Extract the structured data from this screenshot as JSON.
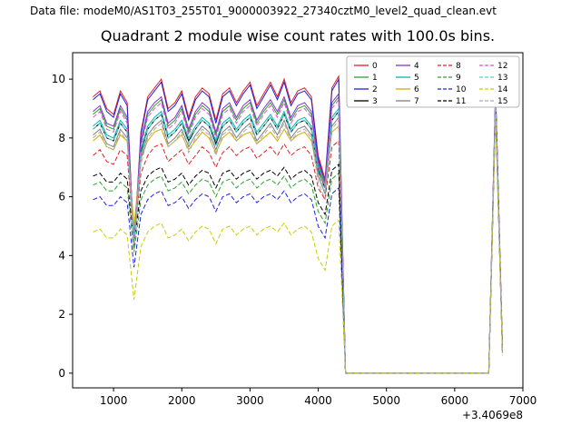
{
  "header": {
    "data_file": "Data file: modeM0/AS1T03_255T01_9000003922_27340cztM0_level2_quad_clean.evt"
  },
  "chart_data": {
    "type": "line",
    "title": "Quadrant 2 module wise count rates with 100.0s bins.",
    "xlabel": "",
    "ylabel": "",
    "x_offset_text": "+3.4069e8",
    "xlim": [
      400,
      7000
    ],
    "ylim": [
      -0.5,
      10.9
    ],
    "xticks": [
      1000,
      2000,
      3000,
      4000,
      5000,
      6000,
      7000
    ],
    "yticks": [
      0,
      2,
      4,
      6,
      8,
      10
    ],
    "grid": false,
    "legend_position": "upper right",
    "legend_columns": 4,
    "background_color": "#ffffff",
    "axis_color": "#000000",
    "legend_border_color": "#b5b5b5",
    "x": [
      700,
      800,
      900,
      1000,
      1100,
      1200,
      1300,
      1400,
      1500,
      1600,
      1700,
      1800,
      1900,
      2000,
      2100,
      2200,
      2300,
      2400,
      2500,
      2600,
      2700,
      2800,
      2900,
      3000,
      3100,
      3200,
      3300,
      3400,
      3500,
      3600,
      3700,
      3800,
      3900,
      4000,
      4100,
      4200,
      4300,
      4400,
      4500,
      4600,
      4700,
      4800,
      4900,
      5000,
      5100,
      5200,
      5300,
      5400,
      5500,
      5600,
      5700,
      5800,
      5900,
      6000,
      6100,
      6200,
      6300,
      6400,
      6500,
      6600,
      6700
    ],
    "series": [
      {
        "name": "0",
        "color": "#e02020",
        "dash": false,
        "values": [
          9.4,
          9.6,
          9.0,
          8.8,
          9.6,
          9.2,
          4.3,
          8.2,
          9.4,
          9.7,
          10.0,
          9.0,
          9.2,
          9.6,
          8.7,
          9.4,
          9.7,
          9.5,
          8.6,
          9.5,
          9.7,
          9.2,
          9.6,
          9.9,
          9.1,
          9.5,
          9.9,
          9.4,
          10.0,
          9.2,
          9.6,
          9.7,
          9.4,
          7.4,
          6.6,
          9.7,
          10.1,
          0,
          0,
          0,
          0,
          0,
          0,
          0,
          0,
          0,
          0,
          0,
          0,
          0,
          0,
          0,
          0,
          0,
          0,
          0,
          0,
          0,
          0,
          9.7,
          0.9
        ]
      },
      {
        "name": "1",
        "color": "#2ca02c",
        "dash": false,
        "values": [
          8.8,
          9.0,
          8.4,
          8.3,
          9.0,
          8.6,
          4.5,
          7.8,
          8.8,
          9.1,
          9.3,
          8.4,
          8.6,
          9.0,
          8.2,
          8.8,
          9.1,
          8.9,
          8.1,
          8.9,
          9.1,
          8.6,
          9.0,
          9.2,
          8.5,
          8.9,
          9.2,
          8.8,
          9.3,
          8.6,
          9.0,
          9.1,
          8.8,
          7.1,
          6.4,
          9.1,
          9.4,
          0,
          0,
          0,
          0,
          0,
          0,
          0,
          0,
          0,
          0,
          0,
          0,
          0,
          0,
          0,
          0,
          0,
          0,
          0,
          0,
          0,
          0,
          9.4,
          0.8
        ]
      },
      {
        "name": "2",
        "color": "#2020dd",
        "dash": false,
        "values": [
          9.3,
          9.5,
          8.9,
          8.7,
          9.5,
          9.1,
          4.2,
          8.1,
          9.3,
          9.6,
          9.9,
          8.9,
          9.1,
          9.5,
          8.6,
          9.3,
          9.6,
          9.4,
          8.5,
          9.4,
          9.6,
          9.1,
          9.5,
          9.8,
          9.0,
          9.4,
          9.8,
          9.3,
          9.9,
          9.1,
          9.5,
          9.6,
          9.3,
          7.3,
          6.5,
          9.6,
          10.0,
          0,
          0,
          0,
          0,
          0,
          0,
          0,
          0,
          0,
          0,
          0,
          0,
          0,
          0,
          0,
          0,
          0,
          0,
          0,
          0,
          0,
          0,
          9.6,
          0.8
        ]
      },
      {
        "name": "3",
        "color": "#000000",
        "dash": false,
        "values": [
          8.3,
          8.5,
          8.0,
          7.9,
          8.5,
          8.2,
          4.6,
          7.5,
          8.3,
          8.6,
          8.8,
          8.0,
          8.2,
          8.5,
          7.9,
          8.3,
          8.6,
          8.4,
          7.8,
          8.4,
          8.6,
          8.2,
          8.5,
          8.7,
          8.1,
          8.4,
          8.7,
          8.3,
          8.8,
          8.2,
          8.5,
          8.6,
          8.3,
          6.9,
          6.3,
          8.6,
          8.9,
          0,
          0,
          0,
          0,
          0,
          0,
          0,
          0,
          0,
          0,
          0,
          0,
          0,
          0,
          0,
          0,
          0,
          0,
          0,
          0,
          0,
          0,
          9.2,
          0.7
        ]
      },
      {
        "name": "4",
        "color": "#8833cc",
        "dash": false,
        "values": [
          8.9,
          9.1,
          8.5,
          8.4,
          9.1,
          8.7,
          4.6,
          7.9,
          8.9,
          9.2,
          9.4,
          8.5,
          8.7,
          9.1,
          8.3,
          8.9,
          9.2,
          9.0,
          8.2,
          9.0,
          9.2,
          8.7,
          9.1,
          9.3,
          8.6,
          9.0,
          9.3,
          8.9,
          9.4,
          8.7,
          9.1,
          9.2,
          8.9,
          7.2,
          6.5,
          9.2,
          9.5,
          0,
          0,
          0,
          0,
          0,
          0,
          0,
          0,
          0,
          0,
          0,
          0,
          0,
          0,
          0,
          0,
          0,
          0,
          0,
          0,
          0,
          0,
          9.5,
          0.8
        ]
      },
      {
        "name": "5",
        "color": "#00b7b7",
        "dash": false,
        "values": [
          8.4,
          8.6,
          8.1,
          8.0,
          8.6,
          8.3,
          4.7,
          7.6,
          8.4,
          8.7,
          8.9,
          8.1,
          8.3,
          8.6,
          8.0,
          8.4,
          8.7,
          8.5,
          7.9,
          8.5,
          8.7,
          8.3,
          8.6,
          8.8,
          8.2,
          8.5,
          8.8,
          8.4,
          8.9,
          8.3,
          8.6,
          8.7,
          8.4,
          7.0,
          6.4,
          8.7,
          9.0,
          0,
          0,
          0,
          0,
          0,
          0,
          0,
          0,
          0,
          0,
          0,
          0,
          0,
          0,
          0,
          0,
          0,
          0,
          0,
          0,
          0,
          0,
          9.3,
          0.8
        ]
      },
      {
        "name": "6",
        "color": "#d4aa00",
        "dash": false,
        "values": [
          7.9,
          8.1,
          7.7,
          7.6,
          8.1,
          7.9,
          5.0,
          7.3,
          7.9,
          8.2,
          8.3,
          7.7,
          7.9,
          8.1,
          7.6,
          7.9,
          8.2,
          8.0,
          7.5,
          8.0,
          8.2,
          7.9,
          8.1,
          8.2,
          7.8,
          8.0,
          8.2,
          7.9,
          8.3,
          7.9,
          8.1,
          8.2,
          7.9,
          6.8,
          6.4,
          8.2,
          8.4,
          0,
          0,
          0,
          0,
          0,
          0,
          0,
          0,
          0,
          0,
          0,
          0,
          0,
          0,
          0,
          0,
          0,
          0,
          0,
          0,
          0,
          0,
          9.1,
          0.7
        ]
      },
      {
        "name": "7",
        "color": "#808080",
        "dash": false,
        "values": [
          8.1,
          8.3,
          7.8,
          7.7,
          8.3,
          8.0,
          4.4,
          7.3,
          8.1,
          8.4,
          8.6,
          7.8,
          8.0,
          8.3,
          7.7,
          8.1,
          8.4,
          8.2,
          7.6,
          8.2,
          8.4,
          8.0,
          8.3,
          8.5,
          7.9,
          8.2,
          8.5,
          8.1,
          8.6,
          8.0,
          8.3,
          8.4,
          8.1,
          6.7,
          6.1,
          8.4,
          8.7,
          0,
          0,
          0,
          0,
          0,
          0,
          0,
          0,
          0,
          0,
          0,
          0,
          0,
          0,
          0,
          0,
          0,
          0,
          0,
          0,
          0,
          0,
          9.0,
          0.7
        ]
      },
      {
        "name": "8",
        "color": "#e02020",
        "dash": true,
        "values": [
          7.4,
          7.6,
          7.2,
          7.1,
          7.6,
          7.4,
          4.5,
          6.8,
          7.4,
          7.7,
          7.8,
          7.2,
          7.4,
          7.6,
          7.1,
          7.4,
          7.7,
          7.5,
          7.0,
          7.5,
          7.7,
          7.4,
          7.6,
          7.7,
          7.3,
          7.5,
          7.7,
          7.4,
          7.8,
          7.4,
          7.6,
          7.7,
          7.4,
          6.3,
          5.9,
          7.7,
          7.9,
          0,
          0,
          0,
          0,
          0,
          0,
          0,
          0,
          0,
          0,
          0,
          0,
          0,
          0,
          0,
          0,
          0,
          0,
          0,
          0,
          0,
          0,
          8.9,
          0.7
        ]
      },
      {
        "name": "9",
        "color": "#2ca02c",
        "dash": true,
        "values": [
          6.4,
          6.5,
          6.2,
          6.2,
          6.5,
          6.3,
          4.1,
          5.9,
          6.4,
          6.6,
          6.7,
          6.2,
          6.3,
          6.5,
          6.1,
          6.4,
          6.6,
          6.5,
          6.0,
          6.5,
          6.6,
          6.3,
          6.5,
          6.6,
          6.3,
          6.5,
          6.6,
          6.4,
          6.7,
          6.3,
          6.5,
          6.6,
          6.4,
          5.5,
          5.1,
          6.6,
          6.8,
          0,
          0,
          0,
          0,
          0,
          0,
          0,
          0,
          0,
          0,
          0,
          0,
          0,
          0,
          0,
          0,
          0,
          0,
          0,
          0,
          0,
          0,
          9.2,
          0.8
        ]
      },
      {
        "name": "10",
        "color": "#2020dd",
        "dash": true,
        "values": [
          5.9,
          6.0,
          5.7,
          5.7,
          6.0,
          5.8,
          3.6,
          5.4,
          5.9,
          6.1,
          6.2,
          5.7,
          5.8,
          6.0,
          5.6,
          5.9,
          6.1,
          6.0,
          5.5,
          6.0,
          6.1,
          5.8,
          6.0,
          6.1,
          5.8,
          6.0,
          6.1,
          5.9,
          6.2,
          5.8,
          6.0,
          6.1,
          5.9,
          5.0,
          4.6,
          6.1,
          6.3,
          0,
          0,
          0,
          0,
          0,
          0,
          0,
          0,
          0,
          0,
          0,
          0,
          0,
          0,
          0,
          0,
          0,
          0,
          0,
          0,
          0,
          0,
          9.0,
          0.7
        ]
      },
      {
        "name": "11",
        "color": "#000000",
        "dash": true,
        "values": [
          6.7,
          6.8,
          6.5,
          6.5,
          6.8,
          6.6,
          4.4,
          6.2,
          6.7,
          6.9,
          7.0,
          6.5,
          6.6,
          6.8,
          6.4,
          6.7,
          6.9,
          6.8,
          6.3,
          6.8,
          6.9,
          6.6,
          6.8,
          6.9,
          6.6,
          6.8,
          6.9,
          6.7,
          7.0,
          6.6,
          6.8,
          6.9,
          6.7,
          5.8,
          5.4,
          6.9,
          7.1,
          0,
          0,
          0,
          0,
          0,
          0,
          0,
          0,
          0,
          0,
          0,
          0,
          0,
          0,
          0,
          0,
          0,
          0,
          0,
          0,
          0,
          0,
          9.1,
          0.7
        ]
      },
      {
        "name": "12",
        "color": "#dd55dd",
        "dash": true,
        "values": [
          8.7,
          8.9,
          8.3,
          8.2,
          8.9,
          8.5,
          4.4,
          7.7,
          8.7,
          9.0,
          9.2,
          8.3,
          8.5,
          8.9,
          8.1,
          8.7,
          9.0,
          8.8,
          8.0,
          8.8,
          9.0,
          8.5,
          8.9,
          9.1,
          8.4,
          8.8,
          9.1,
          8.7,
          9.2,
          8.5,
          8.9,
          9.0,
          8.7,
          7.0,
          6.3,
          9.0,
          9.3,
          0,
          0,
          0,
          0,
          0,
          0,
          0,
          0,
          0,
          0,
          0,
          0,
          0,
          0,
          0,
          0,
          0,
          0,
          0,
          0,
          0,
          0,
          9.4,
          0.8
        ]
      },
      {
        "name": "13",
        "color": "#55cccc",
        "dash": true,
        "values": [
          8.3,
          8.5,
          8.0,
          7.9,
          8.5,
          8.2,
          4.4,
          7.4,
          8.3,
          8.6,
          8.8,
          8.0,
          8.2,
          8.5,
          7.8,
          8.3,
          8.6,
          8.4,
          7.7,
          8.4,
          8.6,
          8.2,
          8.5,
          8.7,
          8.1,
          8.4,
          8.7,
          8.3,
          8.8,
          8.2,
          8.5,
          8.6,
          8.3,
          6.8,
          6.2,
          8.6,
          8.9,
          0,
          0,
          0,
          0,
          0,
          0,
          0,
          0,
          0,
          0,
          0,
          0,
          0,
          0,
          0,
          0,
          0,
          0,
          0,
          0,
          0,
          0,
          9.3,
          0.8
        ]
      },
      {
        "name": "14",
        "color": "#cccc00",
        "dash": true,
        "values": [
          4.8,
          4.9,
          4.6,
          4.6,
          4.9,
          4.7,
          2.5,
          4.3,
          4.8,
          5.0,
          5.1,
          4.6,
          4.7,
          4.9,
          4.5,
          4.8,
          5.0,
          4.9,
          4.4,
          4.9,
          5.0,
          4.7,
          4.9,
          5.0,
          4.7,
          4.9,
          5.0,
          4.8,
          5.1,
          4.7,
          4.9,
          5.0,
          4.8,
          3.9,
          3.5,
          5.0,
          5.2,
          0,
          0,
          0,
          0,
          0,
          0,
          0,
          0,
          0,
          0,
          0,
          0,
          0,
          0,
          0,
          0,
          0,
          0,
          0,
          0,
          0,
          0,
          8.8,
          0.6
        ]
      },
      {
        "name": "15",
        "color": "#aaaaaa",
        "dash": true,
        "values": [
          8.0,
          8.2,
          7.7,
          7.6,
          8.2,
          7.9,
          4.1,
          7.1,
          8.0,
          8.3,
          8.5,
          7.7,
          7.9,
          8.2,
          7.5,
          8.0,
          8.3,
          8.1,
          7.4,
          8.1,
          8.3,
          7.9,
          8.2,
          8.4,
          7.8,
          8.1,
          8.4,
          8.0,
          8.5,
          7.9,
          8.2,
          8.3,
          8.0,
          6.5,
          5.9,
          8.3,
          8.6,
          0,
          0,
          0,
          0,
          0,
          0,
          0,
          0,
          0,
          0,
          0,
          0,
          0,
          0,
          0,
          0,
          0,
          0,
          0,
          0,
          0,
          0,
          9.0,
          0.7
        ]
      }
    ]
  }
}
